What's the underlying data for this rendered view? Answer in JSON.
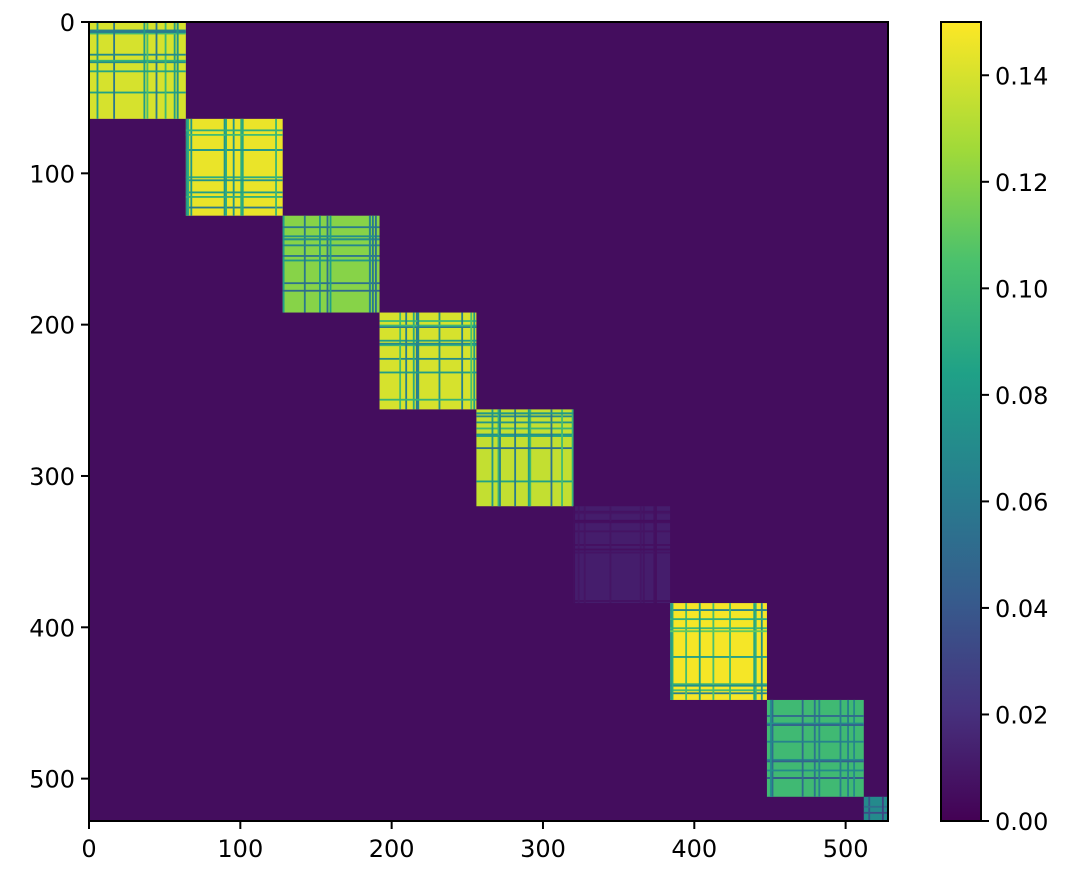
{
  "chart_data": {
    "type": "heatmap",
    "title": "",
    "xlabel": "",
    "ylabel": "",
    "colormap": "viridis",
    "matrix_size": 528,
    "xlim": [
      0,
      528
    ],
    "ylim": [
      528,
      0
    ],
    "x_ticks": [
      0,
      100,
      200,
      300,
      400,
      500
    ],
    "x_tick_labels": [
      "0",
      "100",
      "200",
      "300",
      "400",
      "500"
    ],
    "y_ticks": [
      0,
      100,
      200,
      300,
      400,
      500
    ],
    "y_tick_labels": [
      "0",
      "100",
      "200",
      "300",
      "400",
      "500"
    ],
    "colorbar": {
      "min": 0.0,
      "max": 0.15,
      "ticks": [
        0.0,
        0.02,
        0.04,
        0.06,
        0.08,
        0.1,
        0.12,
        0.14
      ],
      "tick_labels": [
        "0.00",
        "0.02",
        "0.04",
        "0.06",
        "0.08",
        "0.10",
        "0.12",
        "0.14"
      ]
    },
    "blocks": [
      {
        "start": 0,
        "end": 64,
        "value": 0.14
      },
      {
        "start": 64,
        "end": 128,
        "value": 0.145
      },
      {
        "start": 128,
        "end": 192,
        "value": 0.12
      },
      {
        "start": 192,
        "end": 256,
        "value": 0.14
      },
      {
        "start": 256,
        "end": 320,
        "value": 0.135
      },
      {
        "start": 320,
        "end": 384,
        "value": 0.012
      },
      {
        "start": 384,
        "end": 448,
        "value": 0.148
      },
      {
        "start": 448,
        "end": 512,
        "value": 0.1
      },
      {
        "start": 512,
        "end": 528,
        "value": 0.07
      }
    ],
    "background_value": 0.005
  }
}
